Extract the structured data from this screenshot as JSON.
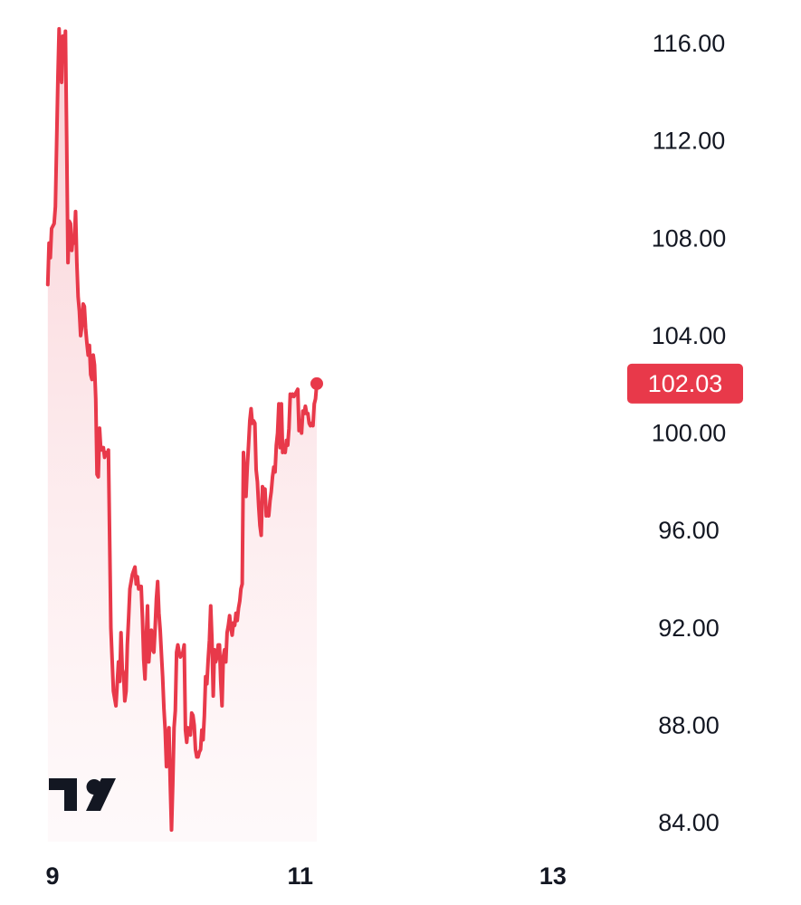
{
  "chart_data": {
    "type": "area",
    "title": "",
    "xlabel": "",
    "ylabel": "",
    "x_ticks": [
      {
        "label": "9",
        "x": 9.0
      },
      {
        "label": "11",
        "x": 11.0
      },
      {
        "label": "13",
        "x": 13.0
      }
    ],
    "y_ticks": [
      "84.00",
      "88.00",
      "92.00",
      "96.00",
      "100.00",
      "104.00",
      "108.00",
      "112.00",
      "116.00"
    ],
    "ylim": [
      82.0,
      118.0
    ],
    "xlim": [
      8.98,
      13.51
    ],
    "grid": false,
    "line_color": "#e8394a",
    "last_value_label": "102.03",
    "series": [
      {
        "values": [
          [
            9.0,
            106.1
          ],
          [
            9.01,
            107.8
          ],
          [
            9.02,
            107.2
          ],
          [
            9.03,
            108.4
          ],
          [
            9.05,
            108.6
          ],
          [
            9.06,
            109.3
          ],
          [
            9.08,
            114.6
          ],
          [
            9.09,
            116.6
          ],
          [
            9.1,
            115.2
          ],
          [
            9.11,
            114.4
          ],
          [
            9.12,
            116.3
          ],
          [
            9.13,
            115.6
          ],
          [
            9.14,
            116.5
          ],
          [
            9.15,
            112.0
          ],
          [
            9.16,
            107.0
          ],
          [
            9.17,
            108.7
          ],
          [
            9.18,
            108.6
          ],
          [
            9.19,
            107.5
          ],
          [
            9.2,
            108.1
          ],
          [
            9.21,
            107.8
          ],
          [
            9.22,
            109.1
          ],
          [
            9.23,
            107.0
          ],
          [
            9.24,
            105.6
          ],
          [
            9.25,
            105.0
          ],
          [
            9.26,
            104.0
          ],
          [
            9.27,
            104.4
          ],
          [
            9.28,
            105.3
          ],
          [
            9.29,
            105.2
          ],
          [
            9.3,
            104.3
          ],
          [
            9.31,
            103.7
          ],
          [
            9.32,
            103.2
          ],
          [
            9.33,
            103.6
          ],
          [
            9.34,
            102.4
          ],
          [
            9.35,
            102.2
          ],
          [
            9.36,
            103.2
          ],
          [
            9.37,
            102.8
          ],
          [
            9.38,
            101.4
          ],
          [
            9.39,
            98.3
          ],
          [
            9.4,
            98.2
          ],
          [
            9.41,
            100.2
          ],
          [
            9.42,
            99.3
          ],
          [
            9.43,
            99.4
          ],
          [
            9.44,
            99.4
          ],
          [
            9.45,
            99.0
          ],
          [
            9.46,
            99.2
          ],
          [
            9.47,
            99.1
          ],
          [
            9.48,
            99.3
          ],
          [
            9.5,
            92.0
          ],
          [
            9.52,
            89.4
          ],
          [
            9.54,
            88.8
          ],
          [
            9.56,
            90.6
          ],
          [
            9.57,
            89.8
          ],
          [
            9.58,
            91.8
          ],
          [
            9.59,
            90.3
          ],
          [
            9.6,
            90.1
          ],
          [
            9.61,
            89.0
          ],
          [
            9.62,
            89.4
          ],
          [
            9.63,
            91.3
          ],
          [
            9.64,
            92.4
          ],
          [
            9.65,
            93.6
          ],
          [
            9.67,
            94.2
          ],
          [
            9.69,
            94.5
          ],
          [
            9.7,
            93.8
          ],
          [
            9.71,
            94.1
          ],
          [
            9.72,
            93.6
          ],
          [
            9.73,
            93.7
          ],
          [
            9.74,
            93.7
          ],
          [
            9.75,
            92.4
          ],
          [
            9.76,
            90.7
          ],
          [
            9.77,
            89.9
          ],
          [
            9.78,
            91.6
          ],
          [
            9.79,
            92.9
          ],
          [
            9.8,
            90.6
          ],
          [
            9.81,
            91.4
          ],
          [
            9.82,
            91.9
          ],
          [
            9.83,
            91.1
          ],
          [
            9.84,
            91.0
          ],
          [
            9.85,
            92.0
          ],
          [
            9.86,
            93.2
          ],
          [
            9.87,
            93.9
          ],
          [
            9.88,
            92.6
          ],
          [
            9.89,
            91.9
          ],
          [
            9.9,
            90.9
          ],
          [
            9.91,
            90.0
          ],
          [
            9.92,
            88.7
          ],
          [
            9.93,
            87.8
          ],
          [
            9.94,
            86.3
          ],
          [
            9.95,
            87.4
          ],
          [
            9.96,
            87.9
          ],
          [
            9.97,
            85.6
          ],
          [
            9.98,
            83.7
          ],
          [
            9.99,
            85.6
          ],
          [
            10.0,
            87.9
          ],
          [
            10.01,
            88.6
          ],
          [
            10.02,
            91.0
          ],
          [
            10.03,
            91.3
          ],
          [
            10.04,
            91.0
          ],
          [
            10.05,
            90.8
          ],
          [
            10.06,
            90.9
          ],
          [
            10.07,
            91.0
          ],
          [
            10.08,
            91.3
          ],
          [
            10.09,
            87.8
          ],
          [
            10.1,
            87.3
          ],
          [
            10.11,
            87.9
          ],
          [
            10.12,
            87.7
          ],
          [
            10.13,
            87.6
          ],
          [
            10.14,
            88.5
          ],
          [
            10.15,
            88.4
          ],
          [
            10.16,
            88.0
          ],
          [
            10.17,
            87.0
          ],
          [
            10.18,
            86.7
          ],
          [
            10.19,
            86.7
          ],
          [
            10.2,
            86.9
          ],
          [
            10.21,
            87.0
          ],
          [
            10.22,
            87.8
          ],
          [
            10.23,
            87.4
          ],
          [
            10.24,
            88.4
          ],
          [
            10.25,
            90.0
          ],
          [
            10.26,
            89.7
          ],
          [
            10.27,
            90.7
          ],
          [
            10.28,
            91.5
          ],
          [
            10.29,
            92.9
          ],
          [
            10.3,
            91.5
          ],
          [
            10.31,
            89.2
          ],
          [
            10.32,
            91.1
          ],
          [
            10.33,
            90.6
          ],
          [
            10.34,
            90.8
          ],
          [
            10.35,
            91.3
          ],
          [
            10.36,
            91.3
          ],
          [
            10.37,
            89.8
          ],
          [
            10.38,
            88.8
          ],
          [
            10.39,
            90.8
          ],
          [
            10.4,
            91.1
          ],
          [
            10.41,
            90.6
          ],
          [
            10.42,
            91.8
          ],
          [
            10.43,
            92.1
          ],
          [
            10.44,
            92.5
          ],
          [
            10.45,
            92.0
          ],
          [
            10.46,
            91.7
          ],
          [
            10.47,
            92.2
          ],
          [
            10.48,
            92.1
          ],
          [
            10.49,
            92.6
          ],
          [
            10.5,
            92.3
          ],
          [
            10.51,
            92.8
          ],
          [
            10.52,
            93.1
          ],
          [
            10.53,
            93.6
          ],
          [
            10.54,
            93.8
          ],
          [
            10.55,
            99.2
          ],
          [
            10.56,
            98.0
          ],
          [
            10.57,
            97.4
          ],
          [
            10.58,
            98.6
          ],
          [
            10.59,
            99.5
          ],
          [
            10.6,
            100.5
          ],
          [
            10.61,
            101.0
          ],
          [
            10.62,
            100.4
          ],
          [
            10.63,
            100.5
          ],
          [
            10.64,
            100.4
          ],
          [
            10.65,
            98.5
          ],
          [
            10.66,
            98.0
          ],
          [
            10.67,
            97.0
          ],
          [
            10.68,
            96.2
          ],
          [
            10.69,
            95.8
          ],
          [
            10.7,
            97.8
          ],
          [
            10.71,
            97.6
          ],
          [
            10.72,
            97.7
          ],
          [
            10.73,
            96.6
          ],
          [
            10.74,
            96.8
          ],
          [
            10.75,
            96.6
          ],
          [
            10.76,
            97.2
          ],
          [
            10.77,
            97.6
          ],
          [
            10.78,
            98.2
          ],
          [
            10.79,
            98.6
          ],
          [
            10.8,
            98.4
          ],
          [
            10.81,
            99.5
          ],
          [
            10.82,
            100.0
          ],
          [
            10.83,
            101.2
          ],
          [
            10.84,
            99.4
          ],
          [
            10.85,
            101.2
          ],
          [
            10.86,
            99.2
          ],
          [
            10.87,
            99.3
          ],
          [
            10.88,
            99.2
          ],
          [
            10.89,
            99.7
          ],
          [
            10.9,
            99.5
          ],
          [
            10.91,
            100.2
          ],
          [
            10.92,
            101.6
          ],
          [
            10.93,
            101.5
          ],
          [
            10.94,
            101.6
          ],
          [
            10.95,
            101.5
          ],
          [
            10.96,
            101.6
          ],
          [
            10.97,
            101.7
          ],
          [
            10.98,
            101.8
          ],
          [
            10.99,
            100.1
          ],
          [
            11.0,
            100.5
          ],
          [
            11.01,
            100.0
          ],
          [
            11.02,
            100.9
          ],
          [
            11.03,
            100.8
          ],
          [
            11.04,
            101.1
          ],
          [
            11.05,
            100.8
          ],
          [
            11.06,
            100.8
          ],
          [
            11.07,
            100.4
          ],
          [
            11.08,
            100.3
          ],
          [
            11.09,
            100.4
          ],
          [
            11.1,
            100.3
          ],
          [
            11.11,
            101.2
          ],
          [
            11.12,
            101.4
          ],
          [
            11.13,
            102.03
          ]
        ]
      }
    ]
  }
}
